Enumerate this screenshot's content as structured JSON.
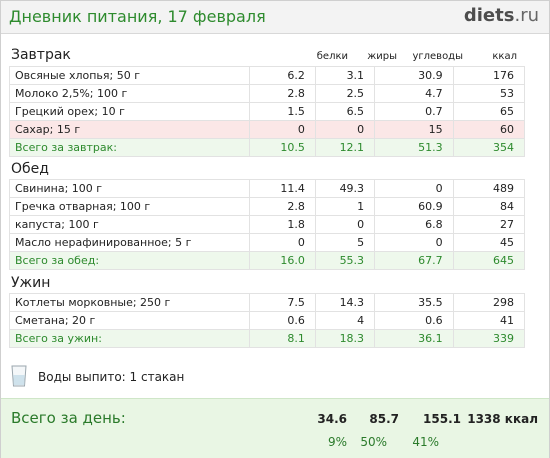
{
  "header": {
    "title": "Дневник питания, 17 февраля",
    "logo_main": "diets",
    "logo_tld": ".ru"
  },
  "columns": [
    "белки",
    "жиры",
    "углеводы",
    "ккал"
  ],
  "sections": [
    {
      "title": "Завтрак",
      "rows": [
        {
          "name": "Овсяные хлопья; 50 г",
          "values": [
            "6.2",
            "3.1",
            "30.9",
            "176"
          ],
          "highlight": false
        },
        {
          "name": "Молоко 2,5%; 100 г",
          "values": [
            "2.8",
            "2.5",
            "4.7",
            "53"
          ],
          "highlight": false
        },
        {
          "name": "Грецкий орех; 10 г",
          "values": [
            "1.5",
            "6.5",
            "0.7",
            "65"
          ],
          "highlight": false
        },
        {
          "name": "Сахар; 15 г",
          "values": [
            "0",
            "0",
            "15",
            "60"
          ],
          "highlight": true
        }
      ],
      "total": {
        "name": "Всего за завтрак:",
        "values": [
          "10.5",
          "12.1",
          "51.3",
          "354"
        ]
      }
    },
    {
      "title": "Обед",
      "rows": [
        {
          "name": "Свинина; 100 г",
          "values": [
            "11.4",
            "49.3",
            "0",
            "489"
          ],
          "highlight": false
        },
        {
          "name": "Гречка отварная; 100 г",
          "values": [
            "2.8",
            "1",
            "60.9",
            "84"
          ],
          "highlight": false
        },
        {
          "name": "капуста; 100 г",
          "values": [
            "1.8",
            "0",
            "6.8",
            "27"
          ],
          "highlight": false
        },
        {
          "name": "Масло нерафинированное; 5 г",
          "values": [
            "0",
            "5",
            "0",
            "45"
          ],
          "highlight": false
        }
      ],
      "total": {
        "name": "Всего за обед:",
        "values": [
          "16.0",
          "55.3",
          "67.7",
          "645"
        ]
      }
    },
    {
      "title": "Ужин",
      "rows": [
        {
          "name": "Котлеты морковные; 250 г",
          "values": [
            "7.5",
            "14.3",
            "35.5",
            "298"
          ],
          "highlight": false
        },
        {
          "name": "Сметана; 20 г",
          "values": [
            "0.6",
            "4",
            "0.6",
            "41"
          ],
          "highlight": false
        }
      ],
      "total": {
        "name": "Всего за ужин:",
        "values": [
          "8.1",
          "18.3",
          "36.1",
          "339"
        ]
      }
    }
  ],
  "water": {
    "text": "Воды выпито: 1 стакан",
    "icon": "glass-icon"
  },
  "day_total": {
    "label": "Всего за день:",
    "values": [
      "34.6",
      "85.7",
      "155.1",
      "1338 ккал"
    ],
    "percents": [
      "9%",
      "50%",
      "41%"
    ]
  },
  "colors": {
    "accent": "#2e8b2e",
    "total_bg": "#eef8ec",
    "warn_bg": "#fbe7e7",
    "day_bg": "#e9f6e4"
  }
}
